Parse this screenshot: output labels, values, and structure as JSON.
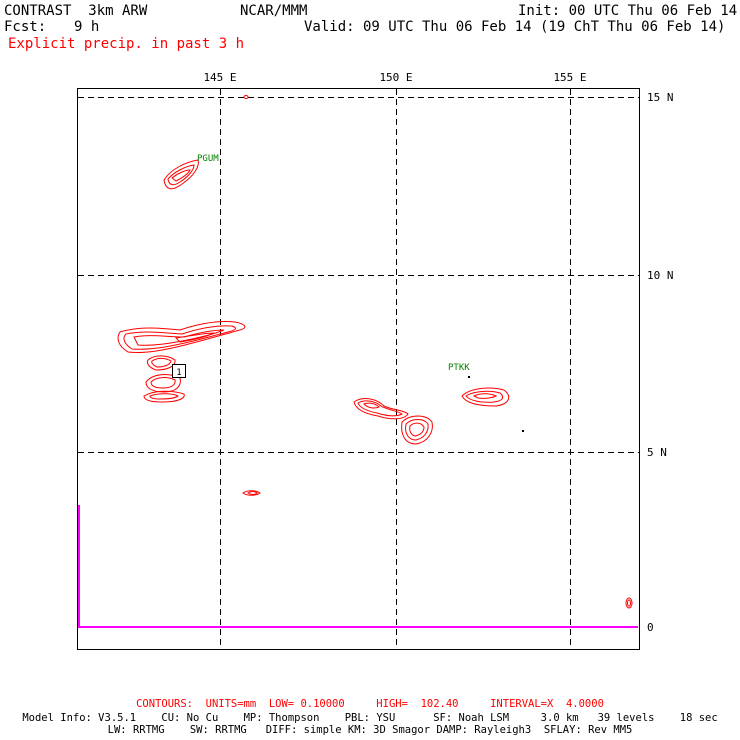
{
  "header": {
    "model": "CONTRAST  3km ARW",
    "org": "NCAR/MMM",
    "init": "Init: 00 UTC Thu 06 Feb 14",
    "fcst_label": "Fcst:",
    "fcst_value": "9 h",
    "valid": "Valid: 09 UTC Thu 06 Feb 14 (19 ChT Thu 06 Feb 14)",
    "field": "Explicit precip. in past 3 h"
  },
  "map": {
    "lon_labels": [
      "145 E",
      "150 E",
      "155 E"
    ],
    "lat_labels": [
      "15 N",
      "10 N",
      "5 N",
      "0"
    ],
    "stations": [
      {
        "id": "PGUM"
      },
      {
        "id": "PTKK"
      }
    ],
    "marker_value": "1",
    "colors": {
      "contour": "#ff0000",
      "station": "#008000",
      "coast": "#ff00ff",
      "grid": "#000000"
    }
  },
  "footer": {
    "contours": "CONTOURS:  UNITS=mm  LOW= 0.10000     HIGH=  102.40     INTERVAL=X  4.0000",
    "model_info_1": "Model Info: V3.5.1    CU: No Cu    MP: Thompson    PBL: YSU      SF: Noah LSM     3.0 km   39 levels    18 sec",
    "model_info_2": "LW: RRTMG    SW: RRTMG   DIFF: simple KM: 3D Smagor DAMP: Rayleigh3  SFLAY: Rev MM5"
  }
}
